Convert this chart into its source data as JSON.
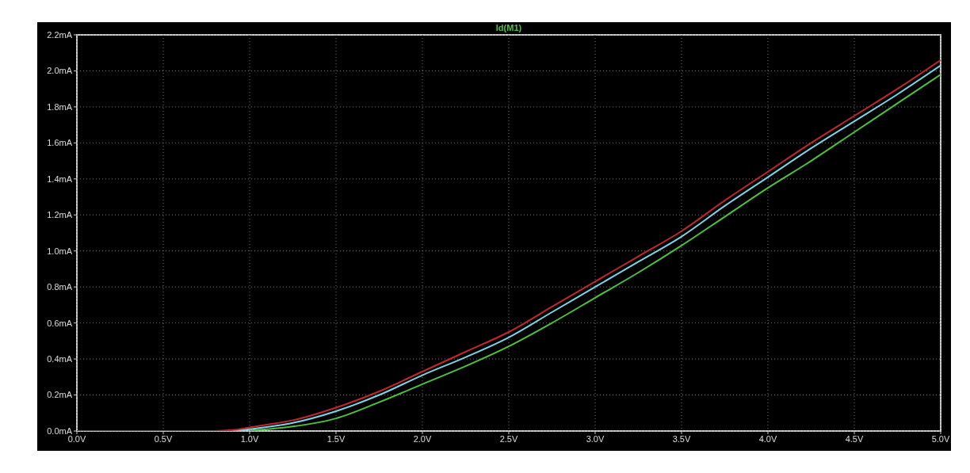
{
  "chart_data": {
    "type": "line",
    "title": "Id(M1)",
    "x": [
      0,
      0.5,
      0.75,
      0.8,
      0.9,
      1.0,
      1.1,
      1.25,
      1.5,
      1.75,
      2.0,
      2.25,
      2.5,
      2.75,
      3.0,
      3.25,
      3.5,
      3.75,
      4.0,
      4.25,
      4.5,
      4.75,
      5.0
    ],
    "series": [
      {
        "color": "#c0282d",
        "values": [
          0,
          0,
          0,
          0,
          0.005,
          0.02,
          0.035,
          0.06,
          0.13,
          0.22,
          0.33,
          0.44,
          0.55,
          0.69,
          0.83,
          0.97,
          1.11,
          1.28,
          1.44,
          1.6,
          1.75,
          1.9,
          2.06
        ]
      },
      {
        "color": "#7fd3e6",
        "values": [
          null,
          null,
          null,
          null,
          0.002,
          0.01,
          0.022,
          0.045,
          0.11,
          0.2,
          0.31,
          0.41,
          0.52,
          0.66,
          0.8,
          0.94,
          1.08,
          1.25,
          1.41,
          1.57,
          1.72,
          1.87,
          2.03
        ]
      },
      {
        "color": "#50c040",
        "values": [
          null,
          null,
          null,
          null,
          null,
          0.002,
          0.01,
          0.025,
          0.07,
          0.16,
          0.26,
          0.36,
          0.47,
          0.6,
          0.74,
          0.88,
          1.03,
          1.19,
          1.35,
          1.5,
          1.66,
          1.82,
          1.98
        ]
      }
    ],
    "xlim": [
      0,
      5
    ],
    "xticks": [
      {
        "value": 0,
        "label": "0.0V"
      },
      {
        "value": 0.5,
        "label": "0.5V"
      },
      {
        "value": 1,
        "label": "1.0V"
      },
      {
        "value": 1.5,
        "label": "1.5V"
      },
      {
        "value": 2,
        "label": "2.0V"
      },
      {
        "value": 2.5,
        "label": "2.5V"
      },
      {
        "value": 3,
        "label": "3.0V"
      },
      {
        "value": 3.5,
        "label": "3.5V"
      },
      {
        "value": 4,
        "label": "4.0V"
      },
      {
        "value": 4.5,
        "label": "4.5V"
      },
      {
        "value": 5,
        "label": "5.0V"
      }
    ],
    "ylim": [
      0,
      2.2
    ],
    "yticks": [
      {
        "value": 0,
        "label": "0.0mA"
      },
      {
        "value": 0.2,
        "label": "0.2mA"
      },
      {
        "value": 0.4,
        "label": "0.4mA"
      },
      {
        "value": 0.6,
        "label": "0.6mA"
      },
      {
        "value": 0.8,
        "label": "0.8mA"
      },
      {
        "value": 1.0,
        "label": "1.0mA"
      },
      {
        "value": 1.2,
        "label": "1.2mA"
      },
      {
        "value": 1.4,
        "label": "1.4mA"
      },
      {
        "value": 1.6,
        "label": "1.6mA"
      },
      {
        "value": 1.8,
        "label": "1.8mA"
      },
      {
        "value": 2.0,
        "label": "2.0mA"
      },
      {
        "value": 2.2,
        "label": "2.2mA"
      }
    ],
    "grid": true,
    "legend": false,
    "marker": "none",
    "line_style": "solid"
  }
}
